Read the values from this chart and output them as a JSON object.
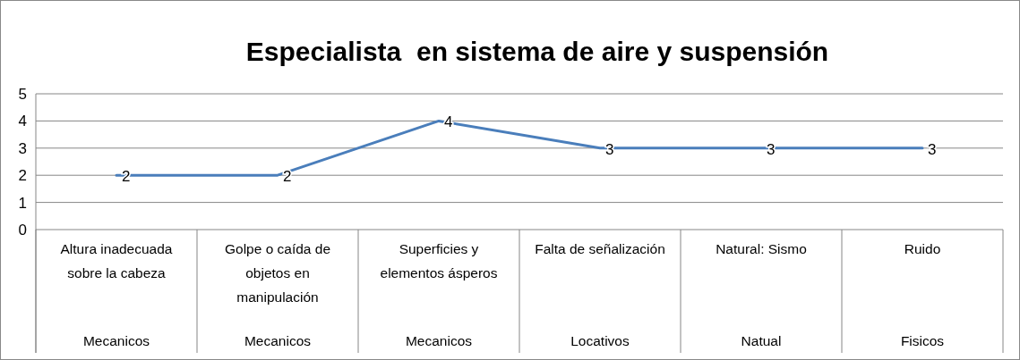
{
  "chart_data": {
    "type": "line",
    "title": "Especialista  en sistema de aire y suspensión",
    "categories": [
      "Altura inadecuada sobre la cabeza",
      "Golpe o caída de objetos en manipulación",
      "Superficies y elementos ásperos",
      "Falta de señalización",
      "Natural: Sismo",
      "Ruido"
    ],
    "series": [
      {
        "color": "#4a7ebb",
        "values": [
          2,
          2,
          4,
          3,
          3,
          3
        ]
      }
    ],
    "ylim": [
      0,
      5
    ],
    "yticks": [
      0,
      1,
      2,
      3,
      4,
      5
    ],
    "grid": "y",
    "data_labels": true,
    "marker": "none",
    "line_style": "solid",
    "annotations": [
      "Mecanicos",
      "Mecanicos",
      "Mecanicos",
      "Locativos",
      "Natual",
      "Fisicos"
    ]
  }
}
